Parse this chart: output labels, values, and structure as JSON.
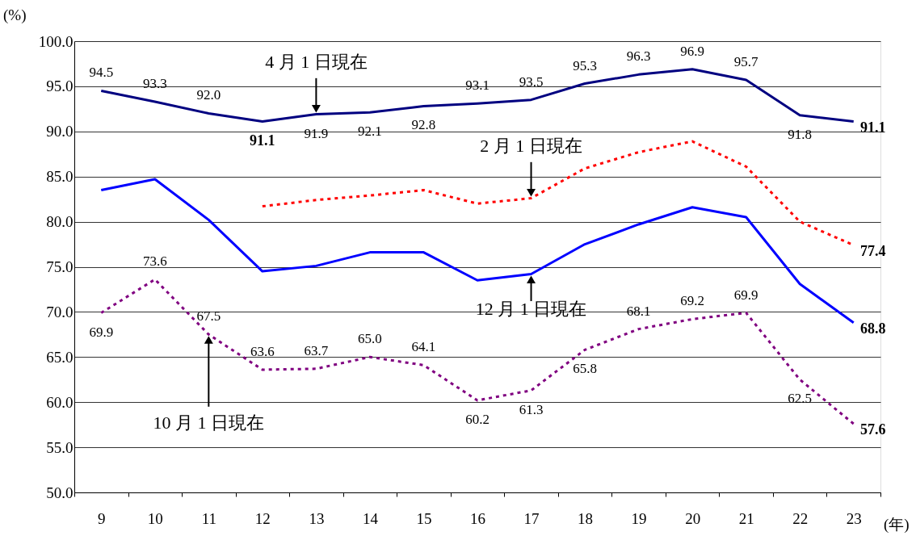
{
  "chart_data": {
    "type": "line",
    "xlabel": "(年)",
    "ylabel": "(%)",
    "categories": [
      "9",
      "10",
      "11",
      "12",
      "13",
      "14",
      "15",
      "16",
      "17",
      "18",
      "19",
      "20",
      "21",
      "22",
      "23"
    ],
    "series": [
      {
        "name": "4 月 1 日現在",
        "color": "#000080",
        "line_style": "solid",
        "values": [
          94.5,
          93.3,
          92.0,
          91.1,
          91.9,
          92.1,
          92.8,
          93.1,
          93.5,
          95.3,
          96.3,
          96.9,
          95.7,
          91.8,
          91.1
        ],
        "value_labels": [
          "94.5",
          "93.3",
          "92.0",
          "91.1",
          "91.9",
          "92.1",
          "92.8",
          "93.1",
          "93.5",
          "95.3",
          "96.3",
          "96.9",
          "95.7",
          "91.8",
          "91.1"
        ]
      },
      {
        "name": "2 月 1 日現在",
        "color": "#ff0000",
        "line_style": "dotted",
        "values": [
          null,
          null,
          null,
          81.7,
          82.4,
          82.9,
          83.5,
          82.0,
          82.6,
          85.9,
          87.7,
          88.9,
          86.1,
          80.0,
          77.4
        ],
        "value_labels": [
          null,
          null,
          null,
          null,
          null,
          null,
          null,
          null,
          null,
          null,
          null,
          null,
          null,
          null,
          "77.4"
        ]
      },
      {
        "name": "12 月 1 日現在",
        "color": "#0000ff",
        "line_style": "solid",
        "values": [
          83.5,
          84.7,
          80.2,
          74.5,
          75.1,
          76.6,
          76.6,
          73.5,
          74.2,
          77.5,
          79.7,
          81.6,
          80.5,
          73.1,
          68.8
        ],
        "value_labels": [
          null,
          null,
          null,
          null,
          null,
          null,
          null,
          null,
          null,
          null,
          null,
          null,
          null,
          null,
          "68.8"
        ]
      },
      {
        "name": "10 月 1 日現在",
        "color": "#800080",
        "line_style": "dotted",
        "values": [
          69.9,
          73.6,
          67.5,
          63.6,
          63.7,
          65.0,
          64.1,
          60.2,
          61.3,
          65.8,
          68.1,
          69.2,
          69.9,
          62.5,
          57.6
        ],
        "value_labels": [
          "69.9",
          "73.6",
          "67.5",
          "63.6",
          "63.7",
          "65.0",
          "64.1",
          "60.2",
          "61.3",
          "65.8",
          "68.1",
          "69.2",
          "69.9",
          "62.5",
          "57.6"
        ]
      }
    ],
    "ylim": [
      50,
      100
    ],
    "yticks": [
      {
        "value": 50,
        "label": "50.0"
      },
      {
        "value": 55,
        "label": "55.0"
      },
      {
        "value": 60,
        "label": "60.0"
      },
      {
        "value": 65,
        "label": "65.0"
      },
      {
        "value": 70,
        "label": "70.0"
      },
      {
        "value": 75,
        "label": "75.0"
      },
      {
        "value": 80,
        "label": "80.0"
      },
      {
        "value": 85,
        "label": "85.0"
      },
      {
        "value": 90,
        "label": "90.0"
      },
      {
        "value": 95,
        "label": "95.0"
      },
      {
        "value": 100,
        "label": "100.0"
      }
    ],
    "grid": "y",
    "marker": "none"
  }
}
